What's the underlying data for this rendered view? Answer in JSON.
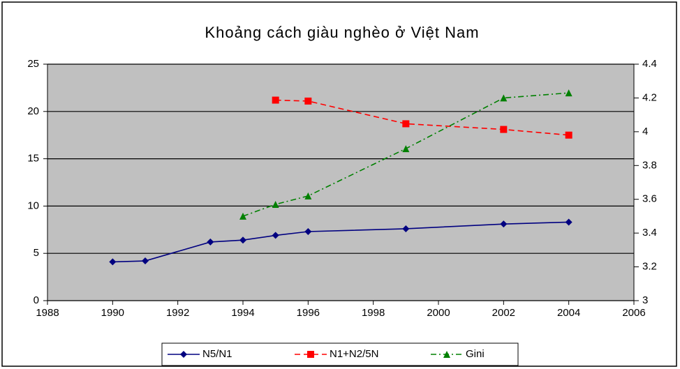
{
  "chart_data": {
    "type": "line",
    "title": "Khoảng cách giàu nghèo ở Việt Nam",
    "series": [
      {
        "name": "N5/N1",
        "color": "#000080",
        "marker": "diamond",
        "linestyle": "solid",
        "x": [
          1990,
          1991,
          1993,
          1994,
          1995,
          1996,
          1999,
          2002,
          2004
        ],
        "values": [
          4.1,
          4.2,
          6.2,
          6.4,
          6.9,
          7.3,
          7.6,
          8.1,
          8.3
        ]
      },
      {
        "name": "N1+N2/5N",
        "color": "#ff0000",
        "marker": "square",
        "linestyle": "dashed",
        "x": [
          1995,
          1996,
          1999,
          2002,
          2004
        ],
        "values": [
          21.2,
          21.1,
          18.7,
          18.1,
          17.5
        ]
      },
      {
        "name": "Gini",
        "color": "#008000",
        "marker": "triangle",
        "linestyle": "dashdot",
        "axis": "y2",
        "x": [
          1994,
          1995,
          1996,
          1999,
          2002,
          2004
        ],
        "values": [
          3.5,
          3.57,
          3.62,
          3.9,
          4.2,
          4.23
        ]
      }
    ],
    "xlim": [
      1988,
      2006
    ],
    "xticks": [
      1988,
      1990,
      1992,
      1994,
      1996,
      1998,
      2000,
      2002,
      2004,
      2006
    ],
    "ylim": [
      0,
      25
    ],
    "yticks": [
      0,
      5,
      10,
      15,
      20,
      25
    ],
    "y2lim": [
      3,
      4.4
    ],
    "y2ticks": [
      3,
      3.2,
      3.4,
      3.6,
      3.8,
      4,
      4.2,
      4.4
    ],
    "grid": true,
    "legend": "bottom"
  }
}
